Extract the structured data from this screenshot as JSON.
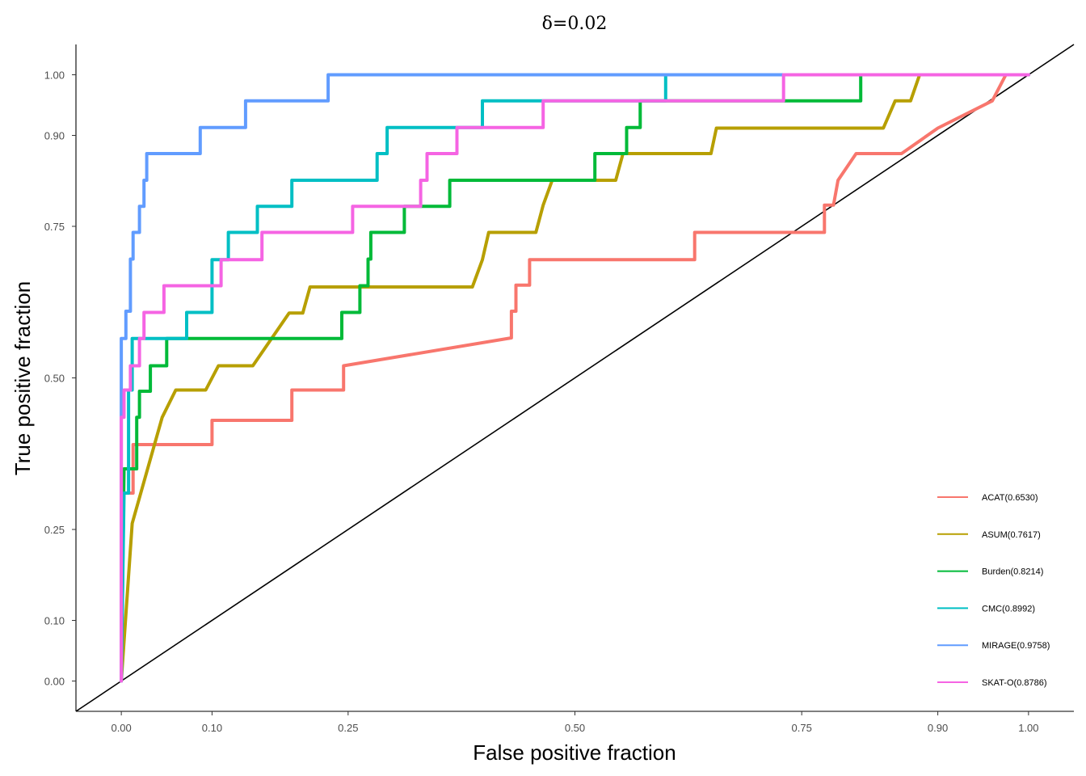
{
  "chart_data": {
    "type": "line",
    "title": "δ=0.02",
    "xlabel": "False positive fraction",
    "ylabel": "True positive fraction",
    "xlim": [
      -0.05,
      1.05
    ],
    "ylim": [
      -0.05,
      1.05
    ],
    "x_ticks": [
      {
        "v": 0.0,
        "label": "0.00"
      },
      {
        "v": 0.1,
        "label": "0.10"
      },
      {
        "v": 0.25,
        "label": "0.25"
      },
      {
        "v": 0.5,
        "label": "0.50"
      },
      {
        "v": 0.75,
        "label": "0.75"
      },
      {
        "v": 0.9,
        "label": "0.90"
      },
      {
        "v": 1.0,
        "label": "1.00"
      }
    ],
    "y_ticks": [
      {
        "v": 0.0,
        "label": "0.00"
      },
      {
        "v": 0.1,
        "label": "0.10"
      },
      {
        "v": 0.25,
        "label": "0.25"
      },
      {
        "v": 0.5,
        "label": "0.50"
      },
      {
        "v": 0.75,
        "label": "0.75"
      },
      {
        "v": 0.9,
        "label": "0.90"
      },
      {
        "v": 1.0,
        "label": "1.00"
      }
    ],
    "grid": false,
    "legend_position": "bottom-right",
    "diagonal": {
      "from": [
        -0.05,
        -0.05
      ],
      "to": [
        1.05,
        1.05
      ],
      "color": "#000000"
    },
    "series": [
      {
        "name": "ACAT(0.6530)",
        "color": "#F8766D",
        "points": [
          [
            0.0,
            0.0
          ],
          [
            0.002,
            0.31
          ],
          [
            0.013,
            0.31
          ],
          [
            0.013,
            0.39
          ],
          [
            0.1,
            0.39
          ],
          [
            0.1,
            0.43
          ],
          [
            0.188,
            0.43
          ],
          [
            0.188,
            0.48
          ],
          [
            0.245,
            0.48
          ],
          [
            0.245,
            0.52
          ],
          [
            0.43,
            0.566
          ],
          [
            0.43,
            0.61
          ],
          [
            0.435,
            0.61
          ],
          [
            0.435,
            0.653
          ],
          [
            0.45,
            0.653
          ],
          [
            0.45,
            0.695
          ],
          [
            0.632,
            0.695
          ],
          [
            0.632,
            0.74
          ],
          [
            0.775,
            0.74
          ],
          [
            0.775,
            0.785
          ],
          [
            0.785,
            0.785
          ],
          [
            0.79,
            0.826
          ],
          [
            0.81,
            0.87
          ],
          [
            0.86,
            0.87
          ],
          [
            0.9,
            0.912
          ],
          [
            0.96,
            0.957
          ],
          [
            0.975,
            1.0
          ],
          [
            1.0,
            1.0
          ]
        ]
      },
      {
        "name": "ASUM(0.7617)",
        "color": "#B79F00",
        "points": [
          [
            0.0,
            0.0
          ],
          [
            0.012,
            0.26
          ],
          [
            0.045,
            0.435
          ],
          [
            0.06,
            0.48
          ],
          [
            0.093,
            0.48
          ],
          [
            0.107,
            0.52
          ],
          [
            0.145,
            0.52
          ],
          [
            0.185,
            0.607
          ],
          [
            0.2,
            0.607
          ],
          [
            0.208,
            0.65
          ],
          [
            0.387,
            0.65
          ],
          [
            0.398,
            0.695
          ],
          [
            0.405,
            0.74
          ],
          [
            0.457,
            0.74
          ],
          [
            0.465,
            0.785
          ],
          [
            0.475,
            0.826
          ],
          [
            0.545,
            0.826
          ],
          [
            0.553,
            0.87
          ],
          [
            0.65,
            0.87
          ],
          [
            0.656,
            0.912
          ],
          [
            0.84,
            0.912
          ],
          [
            0.853,
            0.957
          ],
          [
            0.87,
            0.957
          ],
          [
            0.88,
            1.0
          ],
          [
            1.0,
            1.0
          ]
        ]
      },
      {
        "name": "Burden(0.8214)",
        "color": "#00BA38",
        "points": [
          [
            0.0,
            0.0
          ],
          [
            0.003,
            0.35
          ],
          [
            0.017,
            0.35
          ],
          [
            0.017,
            0.435
          ],
          [
            0.02,
            0.435
          ],
          [
            0.02,
            0.478
          ],
          [
            0.032,
            0.478
          ],
          [
            0.032,
            0.52
          ],
          [
            0.05,
            0.52
          ],
          [
            0.05,
            0.565
          ],
          [
            0.243,
            0.565
          ],
          [
            0.243,
            0.608
          ],
          [
            0.263,
            0.608
          ],
          [
            0.263,
            0.652
          ],
          [
            0.272,
            0.652
          ],
          [
            0.272,
            0.696
          ],
          [
            0.275,
            0.696
          ],
          [
            0.275,
            0.74
          ],
          [
            0.312,
            0.74
          ],
          [
            0.312,
            0.783
          ],
          [
            0.362,
            0.783
          ],
          [
            0.362,
            0.826
          ],
          [
            0.522,
            0.826
          ],
          [
            0.522,
            0.87
          ],
          [
            0.557,
            0.87
          ],
          [
            0.557,
            0.913
          ],
          [
            0.572,
            0.913
          ],
          [
            0.572,
            0.957
          ],
          [
            0.815,
            0.957
          ],
          [
            0.815,
            1.0
          ],
          [
            1.0,
            1.0
          ]
        ]
      },
      {
        "name": "CMC(0.8992)",
        "color": "#00BFC4",
        "points": [
          [
            0.0,
            0.0
          ],
          [
            0.003,
            0.31
          ],
          [
            0.008,
            0.31
          ],
          [
            0.008,
            0.48
          ],
          [
            0.012,
            0.48
          ],
          [
            0.012,
            0.565
          ],
          [
            0.072,
            0.565
          ],
          [
            0.072,
            0.608
          ],
          [
            0.1,
            0.608
          ],
          [
            0.1,
            0.695
          ],
          [
            0.118,
            0.695
          ],
          [
            0.118,
            0.74
          ],
          [
            0.15,
            0.74
          ],
          [
            0.15,
            0.783
          ],
          [
            0.188,
            0.783
          ],
          [
            0.188,
            0.826
          ],
          [
            0.282,
            0.826
          ],
          [
            0.282,
            0.87
          ],
          [
            0.293,
            0.87
          ],
          [
            0.293,
            0.913
          ],
          [
            0.398,
            0.913
          ],
          [
            0.398,
            0.957
          ],
          [
            0.6,
            0.957
          ],
          [
            0.6,
            1.0
          ],
          [
            1.0,
            1.0
          ]
        ]
      },
      {
        "name": "MIRAGE(0.9758)",
        "color": "#619CFF",
        "points": [
          [
            0.0,
            0.0
          ],
          [
            0.0,
            0.565
          ],
          [
            0.005,
            0.565
          ],
          [
            0.005,
            0.61
          ],
          [
            0.01,
            0.61
          ],
          [
            0.01,
            0.696
          ],
          [
            0.013,
            0.696
          ],
          [
            0.013,
            0.74
          ],
          [
            0.02,
            0.74
          ],
          [
            0.02,
            0.783
          ],
          [
            0.025,
            0.783
          ],
          [
            0.025,
            0.826
          ],
          [
            0.028,
            0.826
          ],
          [
            0.028,
            0.87
          ],
          [
            0.087,
            0.87
          ],
          [
            0.087,
            0.913
          ],
          [
            0.137,
            0.913
          ],
          [
            0.137,
            0.957
          ],
          [
            0.228,
            0.957
          ],
          [
            0.228,
            1.0
          ],
          [
            1.0,
            1.0
          ]
        ]
      },
      {
        "name": "SKAT-O(0.8786)",
        "color": "#F564E3",
        "points": [
          [
            0.0,
            0.0
          ],
          [
            0.0,
            0.435
          ],
          [
            0.003,
            0.435
          ],
          [
            0.003,
            0.48
          ],
          [
            0.01,
            0.48
          ],
          [
            0.01,
            0.52
          ],
          [
            0.02,
            0.52
          ],
          [
            0.02,
            0.565
          ],
          [
            0.025,
            0.565
          ],
          [
            0.025,
            0.608
          ],
          [
            0.047,
            0.608
          ],
          [
            0.047,
            0.652
          ],
          [
            0.11,
            0.652
          ],
          [
            0.11,
            0.695
          ],
          [
            0.155,
            0.695
          ],
          [
            0.155,
            0.74
          ],
          [
            0.255,
            0.74
          ],
          [
            0.255,
            0.783
          ],
          [
            0.33,
            0.783
          ],
          [
            0.33,
            0.826
          ],
          [
            0.337,
            0.826
          ],
          [
            0.337,
            0.87
          ],
          [
            0.37,
            0.87
          ],
          [
            0.37,
            0.913
          ],
          [
            0.465,
            0.913
          ],
          [
            0.465,
            0.957
          ],
          [
            0.73,
            0.957
          ],
          [
            0.73,
            1.0
          ],
          [
            1.0,
            1.0
          ]
        ]
      }
    ]
  }
}
